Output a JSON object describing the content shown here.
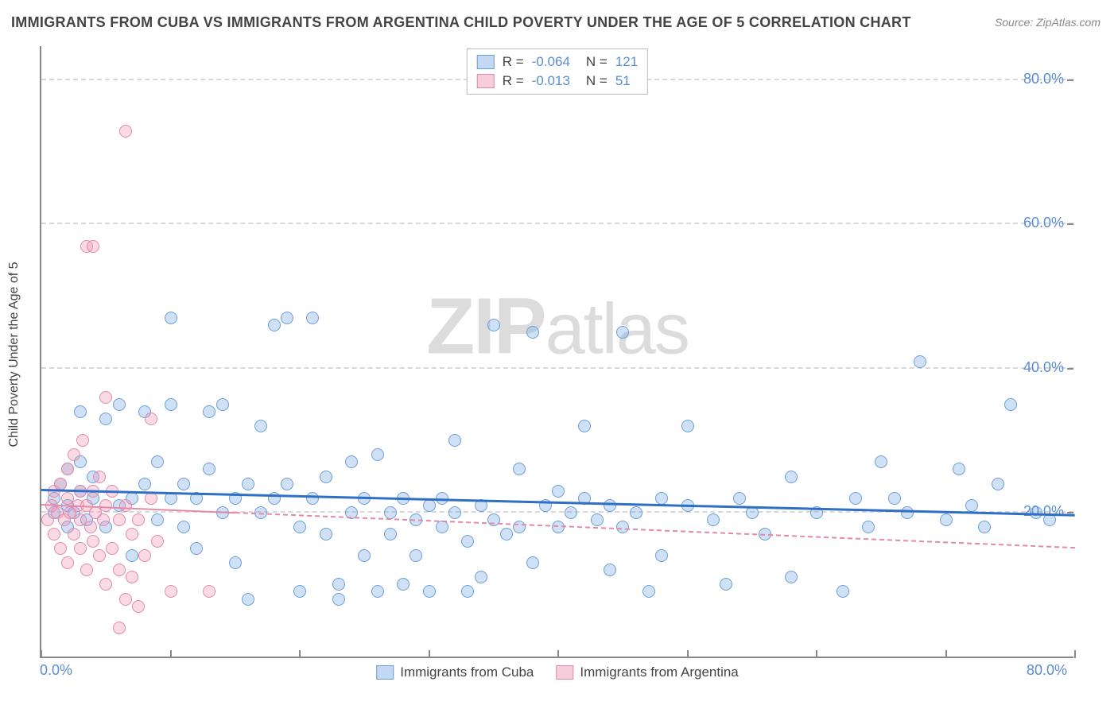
{
  "title": "IMMIGRANTS FROM CUBA VS IMMIGRANTS FROM ARGENTINA CHILD POVERTY UNDER THE AGE OF 5 CORRELATION CHART",
  "source": "Source: ZipAtlas.com",
  "watermark": "ZIPatlas",
  "chart": {
    "type": "scatter",
    "ylabel": "Child Poverty Under the Age of 5",
    "xlim": [
      0,
      80
    ],
    "ylim": [
      0,
      85
    ],
    "xtick_label_min": "0.0%",
    "xtick_label_max": "80.0%",
    "yticks": [
      20,
      40,
      60,
      80
    ],
    "ytick_labels": [
      "20.0%",
      "40.0%",
      "60.0%",
      "80.0%"
    ],
    "xtick_positions": [
      0,
      10,
      20,
      30,
      40,
      50,
      60,
      70,
      80
    ],
    "background_color": "#ffffff",
    "grid_color": "#d8d8d8",
    "axis_color": "#888888",
    "tick_label_color": "#5b8dd6",
    "marker_radius": 8,
    "series": [
      {
        "name": "Immigrants from Cuba",
        "color_fill": "rgba(120,170,230,0.35)",
        "color_stroke": "#6a9fd8",
        "legend_fill": "#c3d8f2",
        "legend_stroke": "#6a9fd8",
        "R": "-0.064",
        "N": "121",
        "trend": {
          "y_at_x0": 23,
          "y_at_xmax": 19.5,
          "color": "#2f6fc4",
          "dashed": false,
          "width": 2.5
        },
        "points": [
          [
            1,
            20
          ],
          [
            1,
            22
          ],
          [
            1.5,
            24
          ],
          [
            2,
            21
          ],
          [
            2,
            26
          ],
          [
            2,
            18
          ],
          [
            2.5,
            20
          ],
          [
            3,
            23
          ],
          [
            3,
            27
          ],
          [
            3,
            34
          ],
          [
            3.5,
            19
          ],
          [
            4,
            22
          ],
          [
            4,
            25
          ],
          [
            5,
            18
          ],
          [
            5,
            33
          ],
          [
            6,
            21
          ],
          [
            6,
            35
          ],
          [
            7,
            22
          ],
          [
            7,
            14
          ],
          [
            8,
            24
          ],
          [
            8,
            34
          ],
          [
            9,
            27
          ],
          [
            9,
            19
          ],
          [
            10,
            22
          ],
          [
            10,
            35
          ],
          [
            10,
            47
          ],
          [
            11,
            18
          ],
          [
            11,
            24
          ],
          [
            12,
            22
          ],
          [
            12,
            15
          ],
          [
            13,
            26
          ],
          [
            13,
            34
          ],
          [
            14,
            20
          ],
          [
            14,
            35
          ],
          [
            15,
            22
          ],
          [
            15,
            13
          ],
          [
            16,
            24
          ],
          [
            16,
            8
          ],
          [
            17,
            20
          ],
          [
            17,
            32
          ],
          [
            18,
            46
          ],
          [
            18,
            22
          ],
          [
            19,
            24
          ],
          [
            19,
            47
          ],
          [
            20,
            18
          ],
          [
            20,
            9
          ],
          [
            21,
            22
          ],
          [
            21,
            47
          ],
          [
            22,
            17
          ],
          [
            22,
            25
          ],
          [
            23,
            10
          ],
          [
            23,
            8
          ],
          [
            24,
            27
          ],
          [
            24,
            20
          ],
          [
            25,
            22
          ],
          [
            25,
            14
          ],
          [
            26,
            28
          ],
          [
            26,
            9
          ],
          [
            27,
            20
          ],
          [
            27,
            17
          ],
          [
            28,
            10
          ],
          [
            28,
            22
          ],
          [
            29,
            19
          ],
          [
            29,
            14
          ],
          [
            30,
            21
          ],
          [
            30,
            9
          ],
          [
            31,
            22
          ],
          [
            31,
            18
          ],
          [
            32,
            20
          ],
          [
            32,
            30
          ],
          [
            33,
            16
          ],
          [
            33,
            9
          ],
          [
            34,
            21
          ],
          [
            34,
            11
          ],
          [
            35,
            46
          ],
          [
            35,
            19
          ],
          [
            36,
            17
          ],
          [
            37,
            18
          ],
          [
            37,
            26
          ],
          [
            38,
            45
          ],
          [
            38,
            13
          ],
          [
            39,
            21
          ],
          [
            40,
            23
          ],
          [
            40,
            18
          ],
          [
            41,
            20
          ],
          [
            42,
            22
          ],
          [
            42,
            32
          ],
          [
            43,
            19
          ],
          [
            44,
            21
          ],
          [
            44,
            12
          ],
          [
            45,
            18
          ],
          [
            45,
            45
          ],
          [
            46,
            20
          ],
          [
            47,
            9
          ],
          [
            48,
            22
          ],
          [
            48,
            14
          ],
          [
            50,
            21
          ],
          [
            50,
            32
          ],
          [
            52,
            19
          ],
          [
            53,
            10
          ],
          [
            54,
            22
          ],
          [
            55,
            20
          ],
          [
            56,
            17
          ],
          [
            58,
            25
          ],
          [
            58,
            11
          ],
          [
            60,
            20
          ],
          [
            62,
            9
          ],
          [
            63,
            22
          ],
          [
            64,
            18
          ],
          [
            65,
            27
          ],
          [
            66,
            22
          ],
          [
            67,
            20
          ],
          [
            68,
            41
          ],
          [
            70,
            19
          ],
          [
            71,
            26
          ],
          [
            72,
            21
          ],
          [
            73,
            18
          ],
          [
            74,
            24
          ],
          [
            75,
            35
          ],
          [
            77,
            20
          ],
          [
            78,
            19
          ]
        ]
      },
      {
        "name": "Immigrants from Argentina",
        "color_fill": "rgba(240,150,180,0.35)",
        "color_stroke": "#e589a8",
        "legend_fill": "#f6cdda",
        "legend_stroke": "#e589a8",
        "R": "-0.013",
        "N": "51",
        "trend": {
          "y_at_x0": 21,
          "y_at_xmax": 15,
          "color": "#e589a8",
          "dashed": true,
          "width": 2,
          "solid_until_x": 15
        },
        "points": [
          [
            0.5,
            19
          ],
          [
            0.8,
            21
          ],
          [
            1,
            17
          ],
          [
            1,
            23
          ],
          [
            1.2,
            20
          ],
          [
            1.5,
            15
          ],
          [
            1.5,
            24
          ],
          [
            1.8,
            19
          ],
          [
            2,
            22
          ],
          [
            2,
            13
          ],
          [
            2,
            26
          ],
          [
            2.2,
            20
          ],
          [
            2.5,
            17
          ],
          [
            2.5,
            28
          ],
          [
            2.8,
            21
          ],
          [
            3,
            15
          ],
          [
            3,
            23
          ],
          [
            3,
            19
          ],
          [
            3.2,
            30
          ],
          [
            3.5,
            12
          ],
          [
            3.5,
            21
          ],
          [
            3.5,
            57
          ],
          [
            3.8,
            18
          ],
          [
            4,
            23
          ],
          [
            4,
            16
          ],
          [
            4,
            57
          ],
          [
            4.2,
            20
          ],
          [
            4.5,
            14
          ],
          [
            4.5,
            25
          ],
          [
            4.8,
            19
          ],
          [
            5,
            10
          ],
          [
            5,
            21
          ],
          [
            5,
            36
          ],
          [
            5.5,
            15
          ],
          [
            5.5,
            23
          ],
          [
            6,
            12
          ],
          [
            6,
            19
          ],
          [
            6,
            4
          ],
          [
            6.5,
            21
          ],
          [
            6.5,
            8
          ],
          [
            6.5,
            73
          ],
          [
            7,
            17
          ],
          [
            7,
            11
          ],
          [
            7.5,
            19
          ],
          [
            7.5,
            7
          ],
          [
            8,
            14
          ],
          [
            8.5,
            22
          ],
          [
            8.5,
            33
          ],
          [
            9,
            16
          ],
          [
            10,
            9
          ],
          [
            13,
            9
          ]
        ]
      }
    ]
  },
  "legend_bottom": [
    {
      "label": "Immigrants from Cuba",
      "fill": "#c3d8f2",
      "stroke": "#6a9fd8"
    },
    {
      "label": "Immigrants from Argentina",
      "fill": "#f6cdda",
      "stroke": "#e589a8"
    }
  ]
}
